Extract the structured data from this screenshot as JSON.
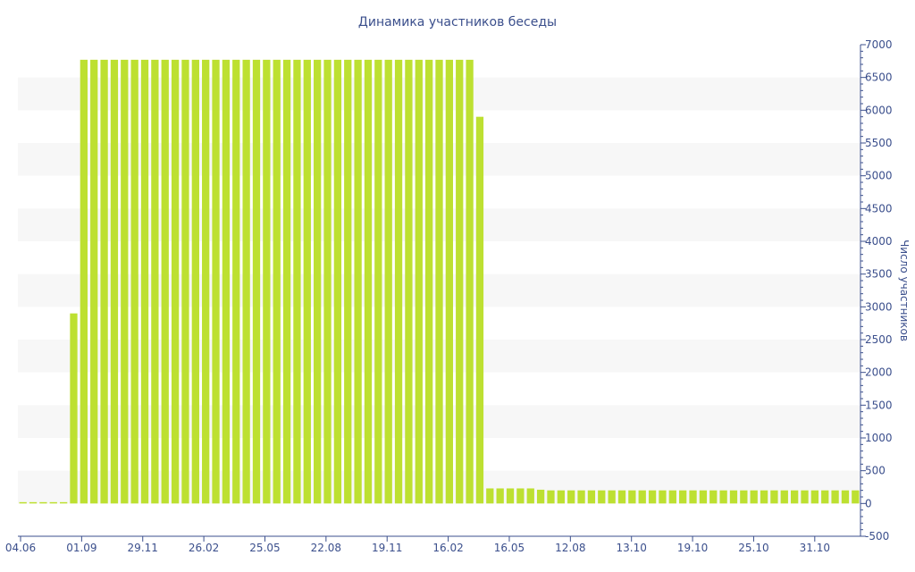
{
  "chart_data": {
    "type": "bar",
    "title": "Динамика участников беседы",
    "xlabel": "",
    "ylabel": "Число участников",
    "ylim": [
      -500,
      7000
    ],
    "y_ticks": [
      -500,
      0,
      500,
      1000,
      1500,
      2000,
      2500,
      3000,
      3500,
      4000,
      4500,
      5000,
      5500,
      6000,
      6500,
      7000
    ],
    "y_axis_position": "right",
    "x_tick_labels": [
      "04.06",
      "01.09",
      "29.11",
      "26.02",
      "25.05",
      "22.08",
      "19.11",
      "16.02",
      "16.05",
      "12.08",
      "13.10",
      "19.10",
      "25.10",
      "31.10"
    ],
    "grid": "alternating horizontal bands",
    "bar_color": "#bde031",
    "band_color": "#f7f7f7",
    "axis_color": "#3b4f8c",
    "values": [
      0,
      0,
      0,
      0,
      0,
      2900,
      6770,
      6770,
      6770,
      6770,
      6770,
      6770,
      6770,
      6770,
      6770,
      6770,
      6770,
      6770,
      6770,
      6770,
      6770,
      6770,
      6770,
      6770,
      6770,
      6770,
      6770,
      6770,
      6770,
      6770,
      6770,
      6770,
      6770,
      6770,
      6770,
      6770,
      6770,
      6770,
      6770,
      6770,
      6770,
      6770,
      6770,
      6770,
      6770,
      5900,
      230,
      230,
      230,
      230,
      230,
      210,
      200,
      200,
      200,
      200,
      200,
      200,
      200,
      200,
      200,
      200,
      200,
      200,
      200,
      200,
      200,
      200,
      200,
      200,
      200,
      200,
      200,
      200,
      200,
      200,
      200,
      200,
      200,
      200,
      200,
      200,
      200
    ]
  }
}
